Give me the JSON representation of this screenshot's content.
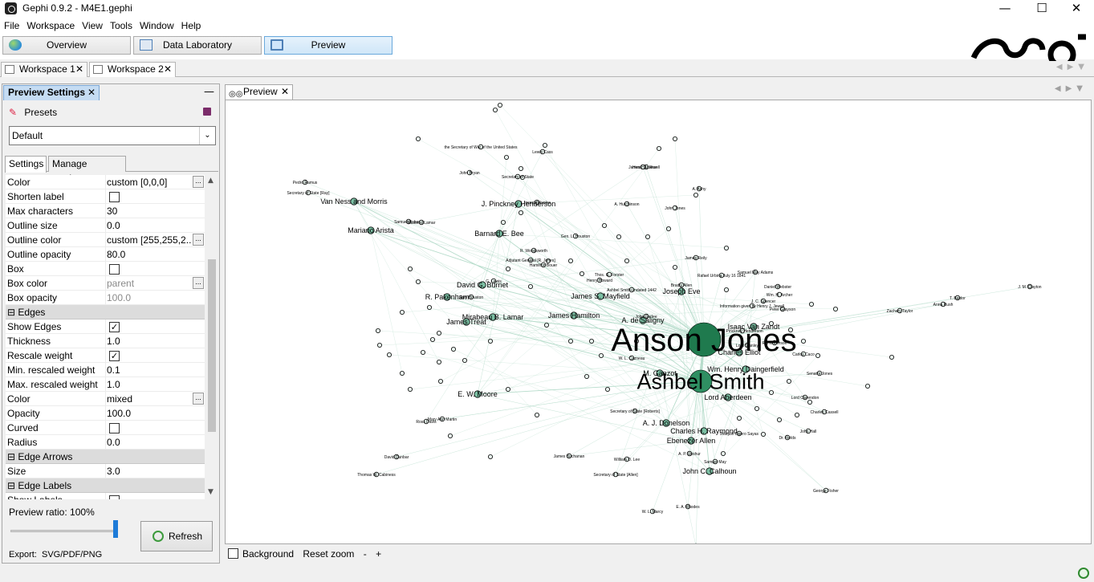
{
  "window": {
    "title": "Gephi 0.9.2 - M4E1.gephi",
    "minimize": "—",
    "maximize": "☐",
    "close": "✕"
  },
  "menu": [
    "File",
    "Workspace",
    "View",
    "Tools",
    "Window",
    "Help"
  ],
  "toolbar": {
    "overview": "Overview",
    "data_laboratory": "Data Laboratory",
    "preview": "Preview"
  },
  "workspaces": [
    {
      "label": "Workspace 1"
    },
    {
      "label": "Workspace 2"
    }
  ],
  "preview_settings": {
    "title": "Preview Settings",
    "presets_label": "Presets",
    "preset_value": "Default",
    "tabs": [
      "Settings",
      "Manage renderers"
    ],
    "properties": [
      {
        "type": "value",
        "key": "Color",
        "value": "custom [0,0,0]",
        "dots": true
      },
      {
        "type": "check",
        "key": "Shorten label",
        "checked": false
      },
      {
        "type": "value",
        "key": "Max characters",
        "value": "30"
      },
      {
        "type": "value",
        "key": "Outline size",
        "value": "0.0"
      },
      {
        "type": "value",
        "key": "Outline color",
        "value": "custom [255,255,2...",
        "dots": true
      },
      {
        "type": "value",
        "key": "Outline opacity",
        "value": "80.0"
      },
      {
        "type": "check",
        "key": "Box",
        "checked": false
      },
      {
        "type": "value",
        "key": "Box color",
        "value": "parent",
        "dots": true,
        "dim": true
      },
      {
        "type": "value",
        "key": "Box opacity",
        "value": "100.0",
        "dim": true
      },
      {
        "type": "category",
        "key": "Edges"
      },
      {
        "type": "check",
        "key": "Show Edges",
        "checked": true
      },
      {
        "type": "value",
        "key": "Thickness",
        "value": "1.0"
      },
      {
        "type": "check",
        "key": "Rescale weight",
        "checked": true
      },
      {
        "type": "value",
        "key": "Min. rescaled weight",
        "value": "0.1"
      },
      {
        "type": "value",
        "key": "Max. rescaled weight",
        "value": "1.0"
      },
      {
        "type": "value",
        "key": "Color",
        "value": "mixed",
        "dots": true
      },
      {
        "type": "value",
        "key": "Opacity",
        "value": "100.0"
      },
      {
        "type": "check",
        "key": "Curved",
        "checked": false
      },
      {
        "type": "value",
        "key": "Radius",
        "value": "0.0"
      },
      {
        "type": "category",
        "key": "Edge Arrows"
      },
      {
        "type": "value",
        "key": "Size",
        "value": "3.0"
      },
      {
        "type": "category",
        "key": "Edge Labels"
      },
      {
        "type": "check",
        "key": "Show Labels",
        "checked": false
      }
    ],
    "preview_ratio_label": "Preview ratio:",
    "preview_ratio": "100%",
    "refresh": "Refresh",
    "export_label": "Export:",
    "export_formats": "SVG/PDF/PNG"
  },
  "preview": {
    "tab_label": "Preview",
    "background_label": "Background",
    "reset_zoom": "Reset zoom",
    "zoom_out": "-",
    "zoom_in": "+",
    "graph": {
      "hubs": [
        "Anson Jones",
        "Ashbel Smith"
      ],
      "medium": [
        "Isaac Van Zandt",
        "Charles Elliot",
        "James S. Mayfield",
        "A. de Saligny",
        "Mirabeau B. Lamar",
        "James Treat",
        "James Hamilton",
        "R. Pakenham",
        "David G. Burnet",
        "Barnard E. Bee",
        "J. Pinckney Henderson",
        "E. W. Moore",
        "Ebenezer Allen",
        "Charles H. Raymond",
        "Joseph Eve",
        "Lord Aberdeen",
        "Wm. Henry Daingerfield",
        "John C. Calhoun",
        "A. J. Donelson",
        "Van Ness and Morris",
        "Mariano Arista",
        "M. Ganzot"
      ],
      "small": [
        "Lord Clarendon",
        "Senator Jones",
        "Daniel Webster",
        "George Fisher",
        "Secretary of State",
        "Henry J. Jewell",
        "W. L. Cazneau",
        "Samuel Roberts",
        "John Bryan",
        "Lewis Cass",
        "A. Hutchinson",
        "A. Ashy",
        "James Buchanan",
        "William D. Lee",
        "Samuel May",
        "Lord Stanley",
        "Thos. G. Forster",
        "Henry Howard",
        "J. C. Spencer",
        "Wm. H. Archer",
        "Zachary Taylor",
        "Tredell Truebridge",
        "E. A. Rhodes",
        "W. L. Marcy",
        "Charles Cassell",
        "John Hall",
        "Dr. Fields",
        "Peter Grayson",
        "R. Henderson",
        "Bradly Allen",
        "James Reily",
        "A. P. Upshur",
        "J. M. Clayton",
        "Anna Rush",
        "T. Baldor",
        "Sam Houston",
        "Secretary of State [Allen]",
        "Secretary of State [Roberts]",
        "the Secretary of War of the United States",
        "Adjutant General [R. Jones]",
        "R. Woodsworth",
        "G. Lewis",
        "Hamilton Bouer",
        "Gen. L. Houston",
        "Ashbel Smith-undated 1442",
        "John Garlee",
        "David Dunbar",
        "Thomas W. Cabiness",
        "Ross Davis",
        "Mary Ann Martin",
        "Joseph Waples",
        "James Hamilton",
        "Pedro Ramus",
        "Secretary of State [Ray]",
        "Musteed Lamar",
        "Joaquin Ligero Sayas",
        "J. Pinckney Henderson",
        "Information given by Henry J. Jewell",
        "Rafael Urbina July 16 1841",
        "Carlos Caco",
        "Samuel May Adams",
        "John Jones"
      ]
    }
  },
  "colors": {
    "node_hub": "#1f7a4e",
    "node_mid": "#7cc0a4",
    "node_small": "#e8f4ee",
    "edge": "#b6dccb",
    "accent": "#1e7bd8"
  }
}
